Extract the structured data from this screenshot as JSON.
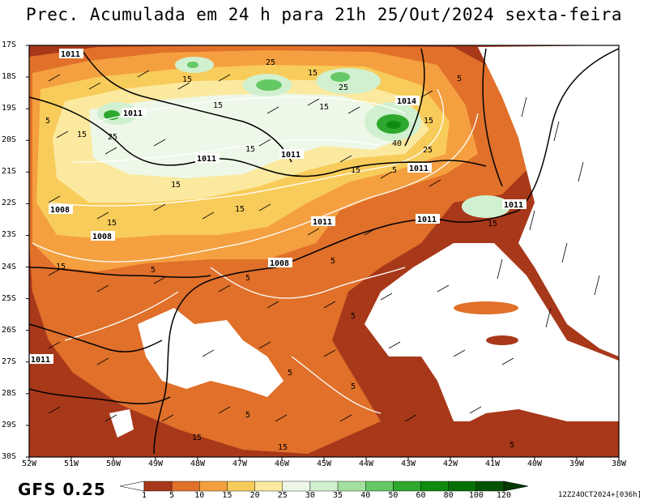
{
  "title": "Prec. Acumulada em 24 h para 21h 25/Out/2024 sexta-feira",
  "model_label": "GFS 0.25",
  "run_info": "12Z24OCT2024+[036h]",
  "axes": {
    "lat_labels": [
      "17S",
      "18S",
      "19S",
      "20S",
      "21S",
      "22S",
      "23S",
      "24S",
      "25S",
      "26S",
      "27S",
      "28S",
      "29S",
      "30S"
    ],
    "lon_labels": [
      "52W",
      "51W",
      "50W",
      "49W",
      "48W",
      "47W",
      "46W",
      "45W",
      "44W",
      "43W",
      "42W",
      "41W",
      "40W",
      "39W",
      "38W"
    ]
  },
  "colorbar": {
    "ticks": [
      "1",
      "5",
      "10",
      "15",
      "20",
      "25",
      "30",
      "35",
      "40",
      "50",
      "60",
      "80",
      "100",
      "120"
    ],
    "colors": [
      "#a8381a",
      "#e0702a",
      "#f5a040",
      "#f8cc5a",
      "#fbe9a0",
      "#eef8e8",
      "#d0f0d0",
      "#a4e0a0",
      "#64c864",
      "#2ea82e",
      "#108a10",
      "#067006",
      "#045204",
      "#023a02"
    ]
  },
  "isobars": [
    {
      "label": "1011"
    },
    {
      "label": "1011"
    },
    {
      "label": "1011"
    },
    {
      "label": "1011"
    },
    {
      "label": "1011"
    },
    {
      "label": "1011"
    },
    {
      "label": "1011"
    },
    {
      "label": "1008"
    },
    {
      "label": "1008"
    },
    {
      "label": "1008"
    },
    {
      "label": "1011"
    },
    {
      "label": "1014"
    }
  ],
  "contour_labels": [
    "25",
    "15",
    "15",
    "25",
    "15",
    "15",
    "25",
    "5",
    "25",
    "40",
    "15",
    "5",
    "15",
    "15",
    "15",
    "15",
    "5",
    "5",
    "5",
    "5",
    "5",
    "5",
    "5",
    "5",
    "15",
    "15",
    "5"
  ]
}
